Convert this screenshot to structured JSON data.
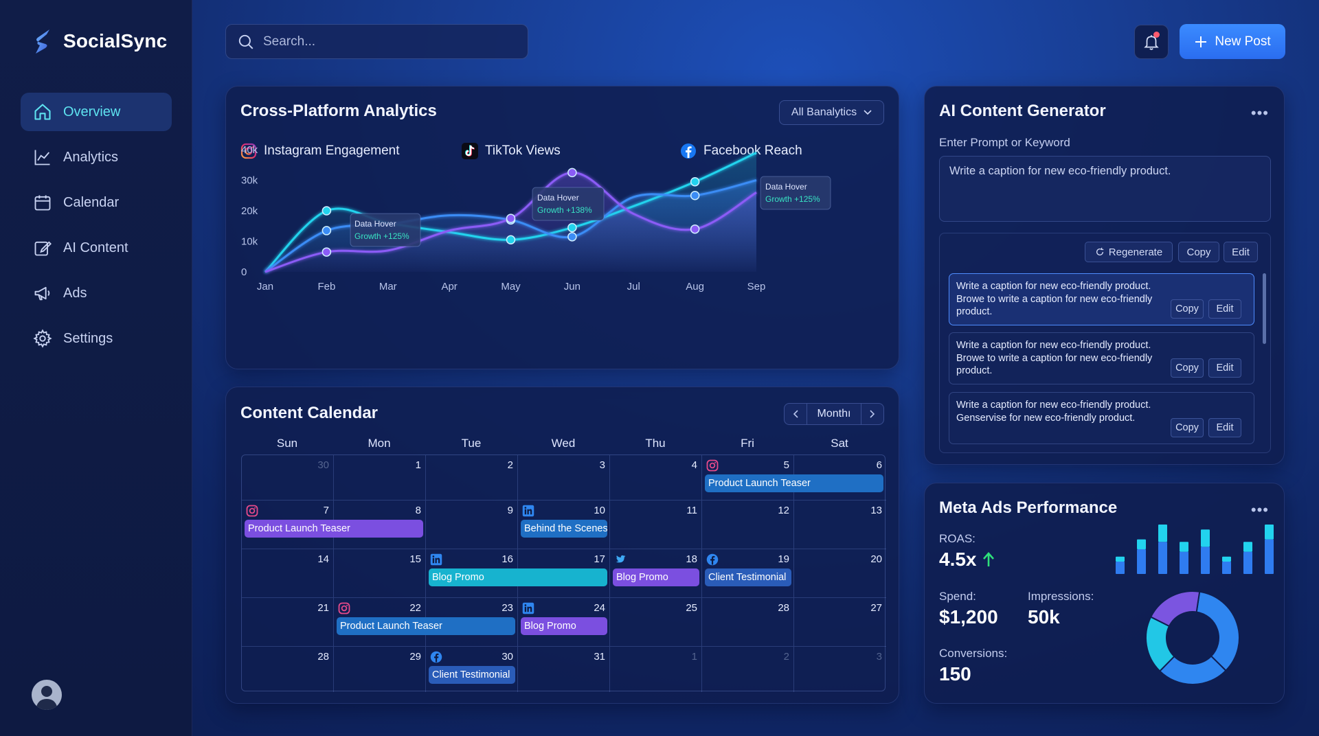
{
  "app": {
    "name": "SocialSync"
  },
  "sidebar": {
    "items": [
      {
        "label": "Overview",
        "icon": "home-icon",
        "active": true
      },
      {
        "label": "Analytics",
        "icon": "line-chart-icon",
        "active": false
      },
      {
        "label": "Calendar",
        "icon": "calendar-icon",
        "active": false
      },
      {
        "label": "AI Content",
        "icon": "edit-icon",
        "active": false
      },
      {
        "label": "Ads",
        "icon": "megaphone-icon",
        "active": false
      },
      {
        "label": "Settings",
        "icon": "gear-icon",
        "active": false
      }
    ]
  },
  "header": {
    "search_placeholder": "Search...",
    "new_post_label": "New Post"
  },
  "colors": {
    "accent_cyan": "#22d3ee",
    "accent_blue": "#3b82f6",
    "accent_purple": "#8b5cf6",
    "button_blue": "#2f7bff"
  },
  "analytics": {
    "title": "Cross-Platform Analytics",
    "filter_label": "All Banalytics",
    "legend": [
      {
        "label": "Instagram Engagement",
        "icon": "instagram-icon"
      },
      {
        "label": "TikTok Views",
        "icon": "tiktok-icon"
      },
      {
        "label": "Facebook Reach",
        "icon": "facebook-icon"
      }
    ],
    "tooltips": [
      {
        "title": "Data Hover",
        "growth": "Growth +125%"
      },
      {
        "title": "Data Hover",
        "growth": "Growth +138%"
      },
      {
        "title": "Data Hover",
        "growth": "Growth +125%"
      }
    ]
  },
  "chart_data": {
    "type": "area",
    "categories": [
      "Jan",
      "Feb",
      "Mar",
      "Apr",
      "May",
      "Jun",
      "Jul",
      "Aug",
      "Sep"
    ],
    "y_ticks": [
      "0",
      "10k",
      "20k",
      "30k",
      "40k"
    ],
    "ylim": [
      0,
      40000
    ],
    "grid": false,
    "series": [
      {
        "color": "#22d3ee",
        "values": [
          0,
          20000,
          16000,
          13000,
          10500,
          14500,
          21500,
          29500,
          39000
        ]
      },
      {
        "color": "#3b8cf5",
        "values": [
          0,
          13500,
          15500,
          18500,
          17000,
          11500,
          24500,
          25000,
          30000
        ]
      },
      {
        "color": "#8b5cf6",
        "values": [
          0,
          6500,
          7000,
          13500,
          17500,
          32500,
          19000,
          14000,
          26000
        ]
      }
    ],
    "markers": [
      {
        "series": 0,
        "index": 1
      },
      {
        "series": 1,
        "index": 1
      },
      {
        "series": 2,
        "index": 1
      },
      {
        "series": 0,
        "index": 4
      },
      {
        "series": 1,
        "index": 4
      },
      {
        "series": 2,
        "index": 4
      },
      {
        "series": 2,
        "index": 5
      },
      {
        "series": 1,
        "index": 5
      },
      {
        "series": 0,
        "index": 5
      },
      {
        "series": 0,
        "index": 7
      },
      {
        "series": 1,
        "index": 7
      },
      {
        "series": 2,
        "index": 7
      }
    ]
  },
  "calendar": {
    "title": "Content Calendar",
    "view_label": "Monthı",
    "weekdays": [
      "Sun",
      "Mon",
      "Tue",
      "Wed",
      "Thu",
      "Fri",
      "Sat"
    ],
    "days": [
      {
        "n": "30",
        "muted": true
      },
      {
        "n": "1"
      },
      {
        "n": "2"
      },
      {
        "n": "3"
      },
      {
        "n": "4"
      },
      {
        "n": "5",
        "icon": "instagram-icon"
      },
      {
        "n": "6"
      },
      {
        "n": "7",
        "icon": "instagram-icon"
      },
      {
        "n": "8"
      },
      {
        "n": "9"
      },
      {
        "n": "10",
        "icon": "linkedin-icon"
      },
      {
        "n": "11"
      },
      {
        "n": "12"
      },
      {
        "n": "13"
      },
      {
        "n": "14"
      },
      {
        "n": "15"
      },
      {
        "n": "16",
        "icon": "linkedin-icon"
      },
      {
        "n": "17"
      },
      {
        "n": "18",
        "icon": "twitter-icon"
      },
      {
        "n": "19",
        "icon": "facebook-icon"
      },
      {
        "n": "20"
      },
      {
        "n": "21"
      },
      {
        "n": "22",
        "icon": "instagram-icon"
      },
      {
        "n": "23"
      },
      {
        "n": "24",
        "icon": "linkedin-icon"
      },
      {
        "n": "25"
      },
      {
        "n": "28"
      },
      {
        "n": "27"
      },
      {
        "n": "28"
      },
      {
        "n": "29"
      },
      {
        "n": "30",
        "icon": "facebook-icon"
      },
      {
        "n": "31"
      },
      {
        "n": "1",
        "muted": true
      },
      {
        "n": "2",
        "muted": true
      },
      {
        "n": "3",
        "muted": true
      }
    ],
    "events": [
      {
        "label": "Product Launch Teaser",
        "row": 0,
        "col": 5,
        "span": 2,
        "color": "#1f6fc4"
      },
      {
        "label": "Product Launch Teaser",
        "row": 1,
        "col": 0,
        "span": 2,
        "color": "#7b4fe0"
      },
      {
        "label": "Behind the Scenes",
        "row": 1,
        "col": 3,
        "span": 1,
        "color": "#1f6fc4"
      },
      {
        "label": "Blog Promo",
        "row": 2,
        "col": 2,
        "span": 2,
        "color": "#17b3cf"
      },
      {
        "label": "Blog Promo",
        "row": 2,
        "col": 4,
        "span": 1,
        "color": "#7b4fe0"
      },
      {
        "label": "Client Testimonial",
        "row": 2,
        "col": 5,
        "span": 1,
        "color": "#2a5cb8"
      },
      {
        "label": "Product Launch Teaser",
        "row": 3,
        "col": 1,
        "span": 2,
        "color": "#1f6fc4"
      },
      {
        "label": "Blog Promo",
        "row": 3,
        "col": 3,
        "span": 1,
        "color": "#7b4fe0"
      },
      {
        "label": "Client Testimonial",
        "row": 4,
        "col": 2,
        "span": 1,
        "color": "#2a5cb8"
      }
    ]
  },
  "ai": {
    "title": "AI Content Generator",
    "prompt_label": "Enter Prompt or Keyword",
    "prompt_value": "Write a caption for new eco-friendly product.",
    "toolbar": {
      "regenerate": "Regenerate",
      "copy": "Copy",
      "edit": "Edit"
    },
    "results": [
      {
        "text": "Write a caption for new eco-friendly product. Browe to write a caption for new eco-friendly product.",
        "copy": "Copy",
        "edit": "Edit",
        "selected": true
      },
      {
        "text": "Write a caption for new eco-friendly product. Browe to write a caption for new eco-friendly product.",
        "copy": "Copy",
        "edit": "Edit",
        "selected": false
      },
      {
        "text": "Write a caption for new eco-friendly product. Genservise for new eco-friendly product.",
        "copy": "Copy",
        "edit": "Edit",
        "selected": false
      }
    ]
  },
  "meta": {
    "title": "Meta Ads Performance",
    "roas_label": "ROAS:",
    "roas_value": "4.5x",
    "spend_label": "Spend:",
    "spend_value": "$1,200",
    "impressions_label": "Impressions:",
    "impressions_value": "50k",
    "conversions_label": "Conversions:",
    "conversions_value": "150",
    "bars": [
      {
        "cyan": 0.1,
        "blue": 0.25
      },
      {
        "cyan": 0.2,
        "blue": 0.5
      },
      {
        "cyan": 0.35,
        "blue": 0.65
      },
      {
        "cyan": 0.2,
        "blue": 0.45
      },
      {
        "cyan": 0.35,
        "blue": 0.55
      },
      {
        "cyan": 0.1,
        "blue": 0.25
      },
      {
        "cyan": 0.2,
        "blue": 0.45
      },
      {
        "cyan": 0.3,
        "blue": 0.7
      }
    ],
    "donut": [
      {
        "value": 0.35,
        "color": "#2f86f0"
      },
      {
        "value": 0.25,
        "color": "#2f86f0"
      },
      {
        "value": 0.2,
        "color": "#22c7e6"
      },
      {
        "value": 0.2,
        "color": "#7b55e0"
      }
    ]
  }
}
